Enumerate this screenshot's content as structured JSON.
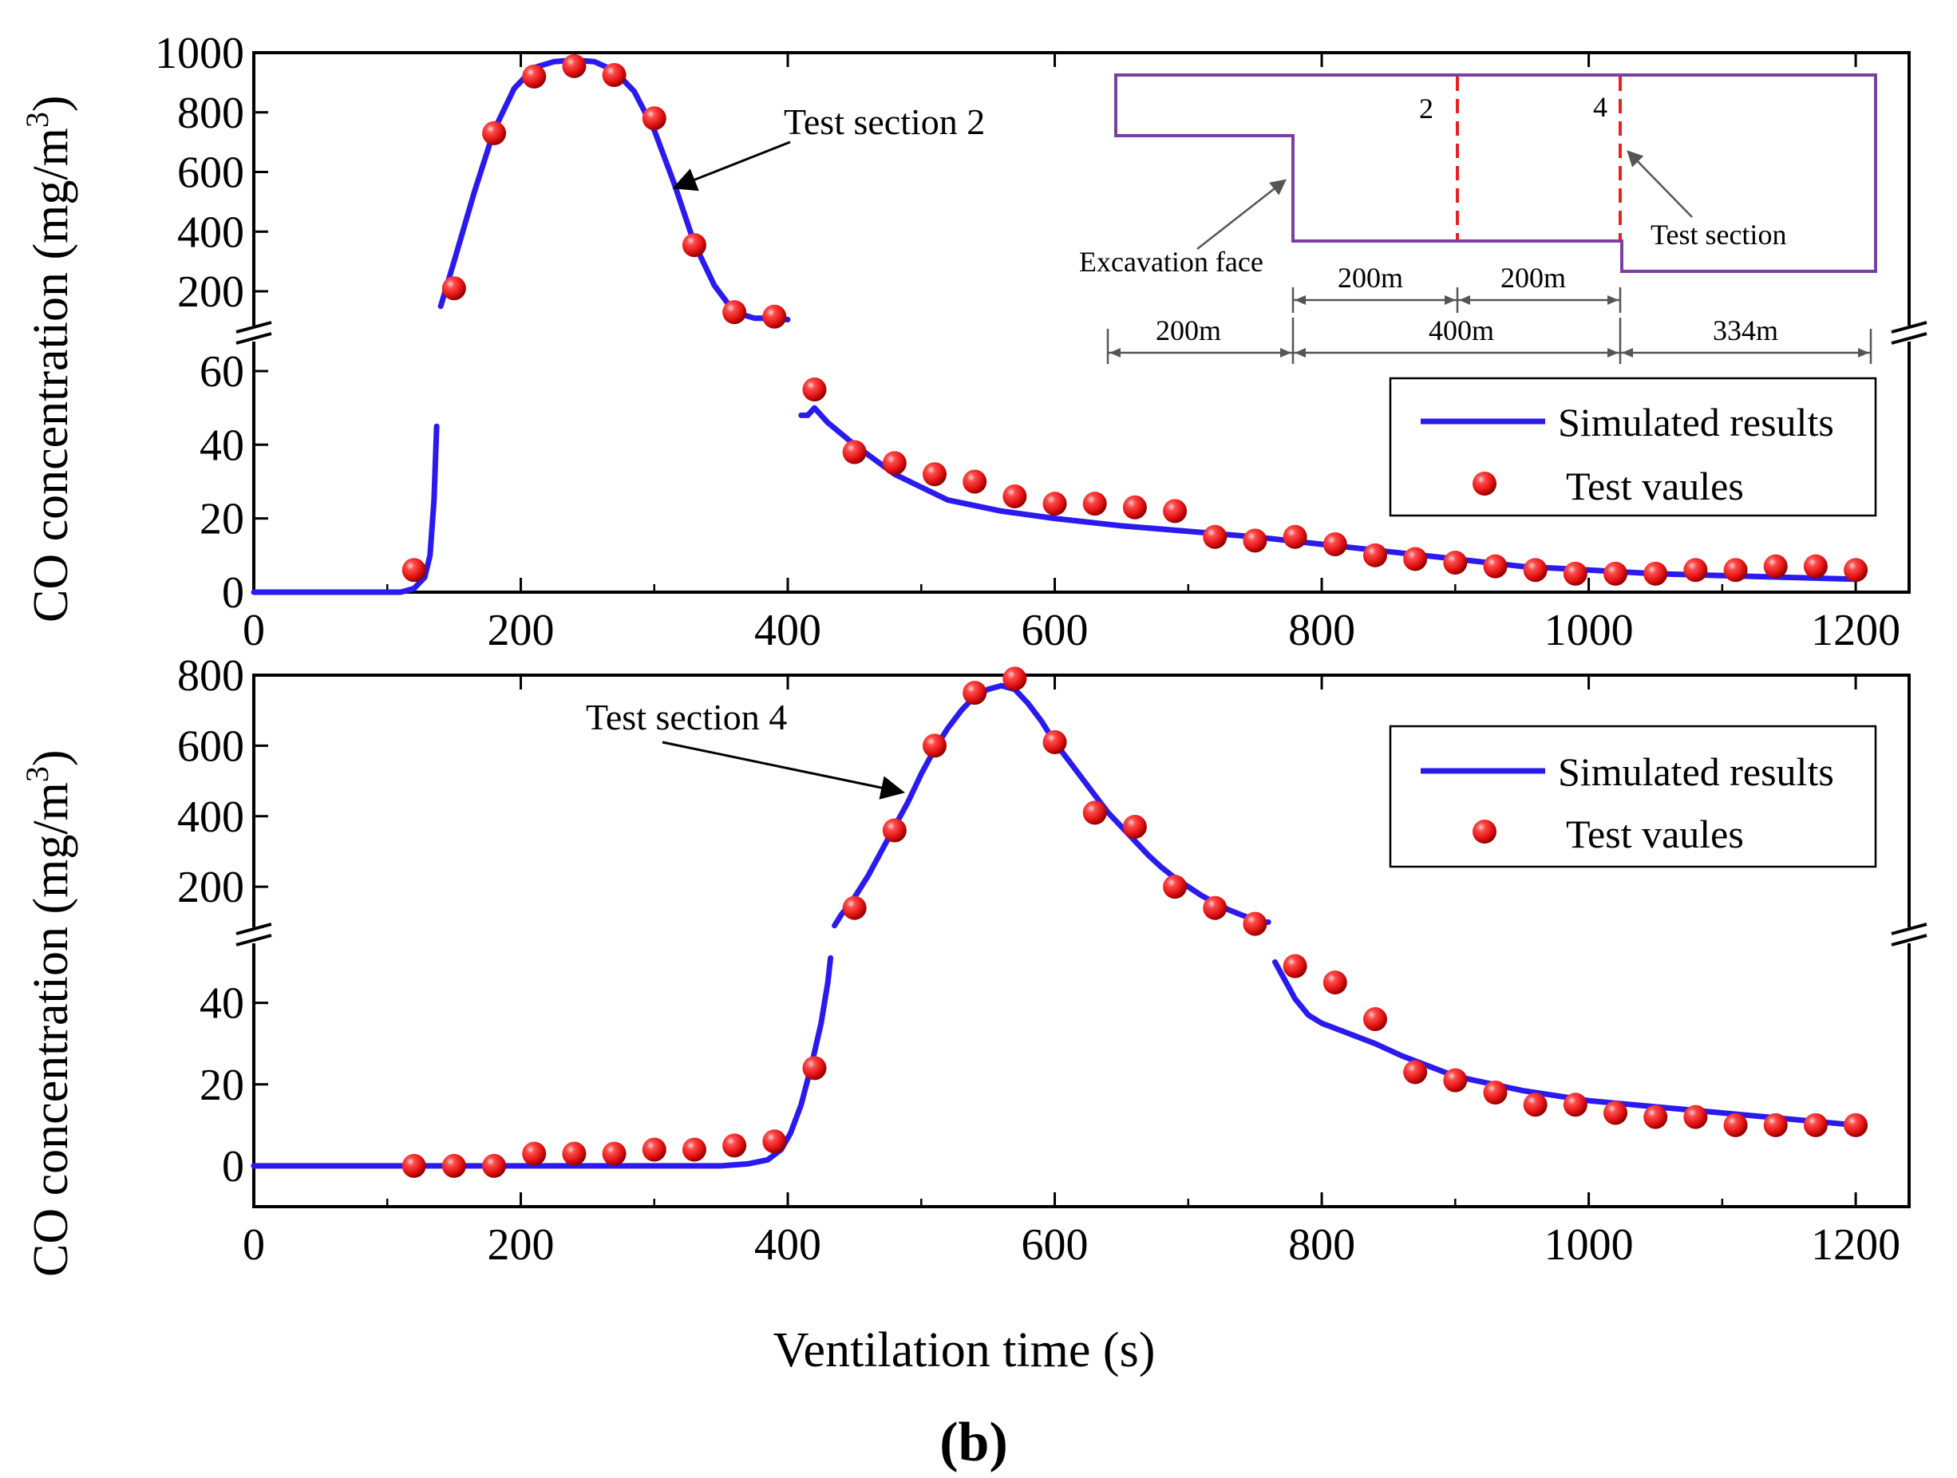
{
  "chart_data": [
    {
      "id": "top",
      "type": "line+scatter",
      "annotation": "Test section 2",
      "xlim": [
        0,
        1240
      ],
      "xticks": [
        "0",
        "200",
        "400",
        "600",
        "800",
        "1000",
        "1200"
      ],
      "ylim_lower": [
        0,
        68
      ],
      "ylim_upper": [
        85,
        1000
      ],
      "yticks_lower": [
        "0",
        "20",
        "40",
        "60"
      ],
      "yticks_upper": [
        "200",
        "400",
        "600",
        "800",
        "1000"
      ],
      "series": [
        {
          "name": "Simulated results",
          "kind": "line",
          "color": "#2a1aee",
          "x": [
            0,
            110,
            120,
            128,
            132,
            135,
            137,
            140,
            150,
            165,
            180,
            195,
            210,
            225,
            240,
            255,
            270,
            285,
            300,
            315,
            330,
            345,
            360,
            375,
            390,
            400,
            410,
            415,
            420,
            430,
            450,
            480,
            520,
            560,
            600,
            650,
            700,
            750,
            800,
            850,
            900,
            950,
            1000,
            1050,
            1100,
            1150,
            1200
          ],
          "y": [
            0,
            0,
            1,
            4,
            10,
            25,
            45,
            150,
            300,
            530,
            740,
            880,
            950,
            970,
            975,
            970,
            940,
            870,
            740,
            560,
            360,
            220,
            130,
            110,
            110,
            105,
            48,
            48,
            50,
            46,
            40,
            32,
            25,
            22,
            20,
            18,
            16.5,
            15,
            13,
            11,
            9,
            7,
            6,
            5,
            4.5,
            4,
            3.5
          ]
        },
        {
          "name": "Test vaules",
          "kind": "scatter",
          "color": "#ee2222",
          "x": [
            120,
            150,
            180,
            210,
            240,
            270,
            300,
            330,
            360,
            390,
            420,
            450,
            480,
            510,
            540,
            570,
            600,
            630,
            660,
            690,
            720,
            750,
            780,
            810,
            840,
            870,
            900,
            930,
            960,
            990,
            1020,
            1050,
            1080,
            1110,
            1140,
            1170,
            1200
          ],
          "y": [
            6,
            210,
            730,
            920,
            955,
            925,
            780,
            355,
            130,
            115,
            55,
            38,
            35,
            32,
            30,
            26,
            24,
            24,
            23,
            22,
            15,
            14,
            15,
            13,
            10,
            9,
            8,
            7,
            6,
            5,
            5,
            5,
            6,
            6,
            7,
            7,
            6
          ]
        }
      ],
      "inset": {
        "labels": [
          "2",
          "4"
        ],
        "excavation_label": "Excavation face",
        "test_section_label": "Test section",
        "segments_upper": [
          "200m",
          "200m"
        ],
        "segments_lower": [
          "200m",
          "400m",
          "334m"
        ]
      }
    },
    {
      "id": "bottom",
      "type": "line+scatter",
      "annotation": "Test section 4",
      "xlim": [
        0,
        1240
      ],
      "xticks": [
        "0",
        "200",
        "400",
        "600",
        "800",
        "1000",
        "1200"
      ],
      "ylim_lower": [
        -10,
        55
      ],
      "ylim_upper": [
        85,
        800
      ],
      "yticks_lower": [
        "0",
        "20",
        "40"
      ],
      "yticks_upper": [
        "200",
        "400",
        "600",
        "800"
      ],
      "series": [
        {
          "name": "Simulated results",
          "kind": "line",
          "color": "#2a1aee",
          "x": [
            0,
            350,
            370,
            385,
            395,
            402,
            410,
            418,
            425,
            430,
            432,
            435,
            440,
            450,
            460,
            470,
            480,
            490,
            500,
            510,
            520,
            530,
            540,
            550,
            560,
            570,
            580,
            590,
            600,
            610,
            620,
            630,
            640,
            650,
            660,
            670,
            680,
            690,
            700,
            710,
            720,
            730,
            740,
            750,
            755,
            760,
            765,
            770,
            775,
            780,
            790,
            800,
            820,
            840,
            860,
            880,
            900,
            950,
            1000,
            1050,
            1100,
            1150,
            1200
          ],
          "y": [
            0,
            0,
            0.5,
            1.5,
            4,
            8,
            15,
            25,
            35,
            45,
            51,
            90,
            120,
            170,
            230,
            300,
            370,
            440,
            520,
            590,
            650,
            700,
            740,
            760,
            770,
            760,
            720,
            670,
            610,
            560,
            510,
            460,
            410,
            370,
            330,
            290,
            255,
            225,
            200,
            175,
            155,
            135,
            120,
            105,
            98,
            100,
            50,
            47,
            44,
            41,
            37,
            35,
            32.5,
            30,
            27,
            24.5,
            22,
            18.5,
            16,
            14.5,
            13,
            11.5,
            10
          ]
        },
        {
          "name": "Test vaules",
          "kind": "scatter",
          "color": "#ee2222",
          "x": [
            120,
            150,
            180,
            210,
            240,
            270,
            300,
            330,
            360,
            390,
            420,
            450,
            480,
            510,
            540,
            570,
            600,
            630,
            660,
            690,
            720,
            750,
            780,
            810,
            840,
            870,
            900,
            930,
            960,
            990,
            1020,
            1050,
            1080,
            1110,
            1140,
            1170,
            1200
          ],
          "y": [
            0,
            0,
            0,
            3,
            3,
            3,
            4,
            4,
            5,
            6,
            24,
            140,
            360,
            600,
            750,
            790,
            610,
            410,
            370,
            200,
            140,
            95,
            49,
            45,
            36,
            23,
            21,
            18,
            15,
            15,
            13,
            12,
            12,
            10,
            10,
            10,
            10
          ]
        }
      ]
    }
  ],
  "shared": {
    "ylabel_top": "CO concentration (mg/m",
    "ylabel_bottom": "CO  concentration (mg/m",
    "ylabel_superscript": "3",
    "ylabel_close": ")",
    "xlabel": "Ventilation time (s)",
    "panel_label": "(b)"
  }
}
